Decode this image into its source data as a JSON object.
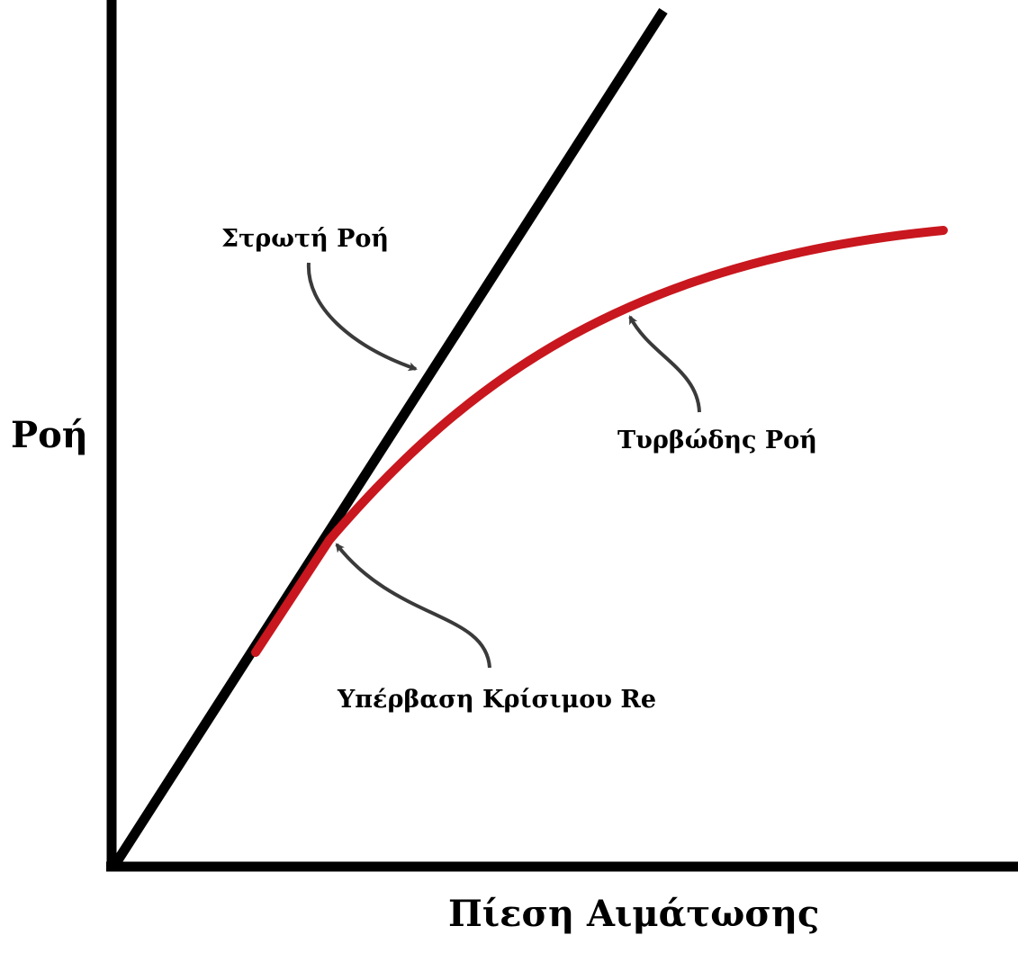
{
  "axes": {
    "y_label": "Ροή",
    "x_label": "Πίεση Αιμάτωσης"
  },
  "curves": {
    "laminar": {
      "label": "Στρωτή Ροή",
      "color": "#000000"
    },
    "turbulent": {
      "label": "Τυρβώδης Ροή",
      "color": "#c8171e"
    }
  },
  "annotations": {
    "critical_re": {
      "label": "Υπέρβαση Κρίσιμου Re"
    }
  },
  "colors": {
    "axis": "#000000",
    "arrow": "#3a3a3a",
    "background": "#ffffff"
  }
}
